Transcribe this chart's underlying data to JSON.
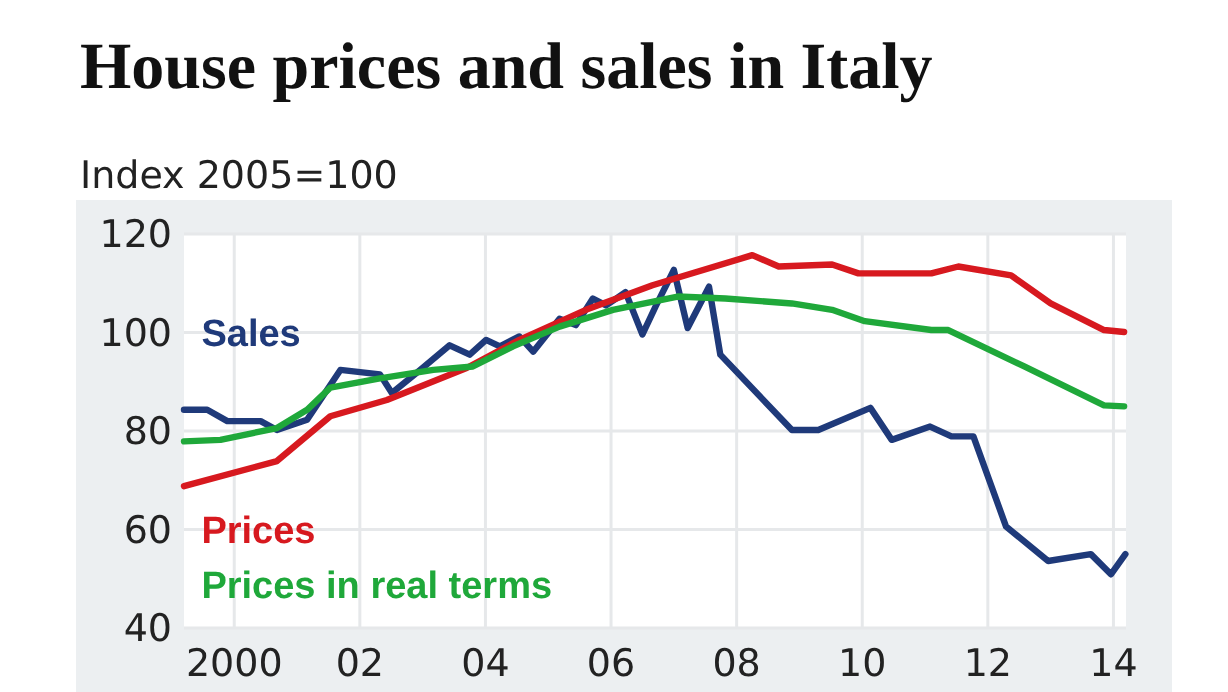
{
  "chart_data": {
    "type": "line",
    "title": "House prices and sales in Italy",
    "subtitle": "Index 2005=100",
    "xlim": [
      1999.2,
      2014.2
    ],
    "xticks": [
      {
        "value": 2000,
        "label": "2000"
      },
      {
        "value": 2002,
        "label": "02"
      },
      {
        "value": 2004,
        "label": "04"
      },
      {
        "value": 2006,
        "label": "06"
      },
      {
        "value": 2008,
        "label": "08"
      },
      {
        "value": 2010,
        "label": "10"
      },
      {
        "value": 2012,
        "label": "12"
      },
      {
        "value": 2014,
        "label": "14"
      }
    ],
    "ylim": [
      40,
      120
    ],
    "yticks": [
      40,
      60,
      80,
      100,
      120
    ],
    "grid": true,
    "legend": false,
    "line_style": "solid",
    "marker": "none",
    "series": [
      {
        "name": "Sales",
        "color": "#1f3a7a",
        "x": [
          1999.2,
          1999.57,
          1999.89,
          2000.42,
          2000.68,
          2001.16,
          2001.69,
          2002.32,
          2002.51,
          2002.96,
          2003.43,
          2003.75,
          2004.01,
          2004.23,
          2004.54,
          2004.76,
          2005.18,
          2005.44,
          2005.71,
          2005.92,
          2006.08,
          2006.23,
          2006.5,
          2006.71,
          2007.0,
          2007.22,
          2007.56,
          2007.74,
          2008.88,
          2009.3,
          2010.13,
          2010.47,
          2011.08,
          2011.42,
          2011.77,
          2012.29,
          2012.96,
          2013.64,
          2013.96,
          2014.19
        ],
        "values": [
          84.3,
          84.3,
          82,
          82,
          80.2,
          82.3,
          92.4,
          91.5,
          87.7,
          92.4,
          97.4,
          95.5,
          98.5,
          97.2,
          99.2,
          96.1,
          102.8,
          101.5,
          106.9,
          105.5,
          106.9,
          108.2,
          99.6,
          105.3,
          112.7,
          100.9,
          109.3,
          95.5,
          80.2,
          80.2,
          84.7,
          78.2,
          80.9,
          78.9,
          78.9,
          60.6,
          53.6,
          55,
          50.9,
          55
        ]
      },
      {
        "name": "Prices",
        "color": "#d7191f",
        "x": [
          1999.2,
          2000.68,
          2001.53,
          2002.43,
          2003.7,
          2004.54,
          2005.6,
          2006.66,
          2008.25,
          2008.67,
          2009.52,
          2009.94,
          2011.1,
          2011.53,
          2012.37,
          2013.0,
          2013.85,
          2014.17
        ],
        "values": [
          68.8,
          73.9,
          83,
          86.3,
          92.8,
          98.5,
          104.6,
          109.6,
          115.7,
          113.4,
          113.8,
          112,
          112,
          113.4,
          111.6,
          105.9,
          100.5,
          100.1
        ]
      },
      {
        "name": "Prices in real terms",
        "color": "#1fa83a",
        "x": [
          1999.2,
          1999.78,
          2000.68,
          2001.16,
          2001.53,
          2002.32,
          2003.17,
          2003.8,
          2004.44,
          2005.18,
          2006.03,
          2007.06,
          2007.82,
          2008.88,
          2009.52,
          2010.04,
          2011.1,
          2011.37,
          2012.58,
          2013.85,
          2014.17
        ],
        "values": [
          77.9,
          78.2,
          80.6,
          84.3,
          88.8,
          90.7,
          92.4,
          93.1,
          97.2,
          101.2,
          104.6,
          107.3,
          106.9,
          105.9,
          104.6,
          102.3,
          100.5,
          100.5,
          93.1,
          85.2,
          85
        ]
      }
    ]
  }
}
